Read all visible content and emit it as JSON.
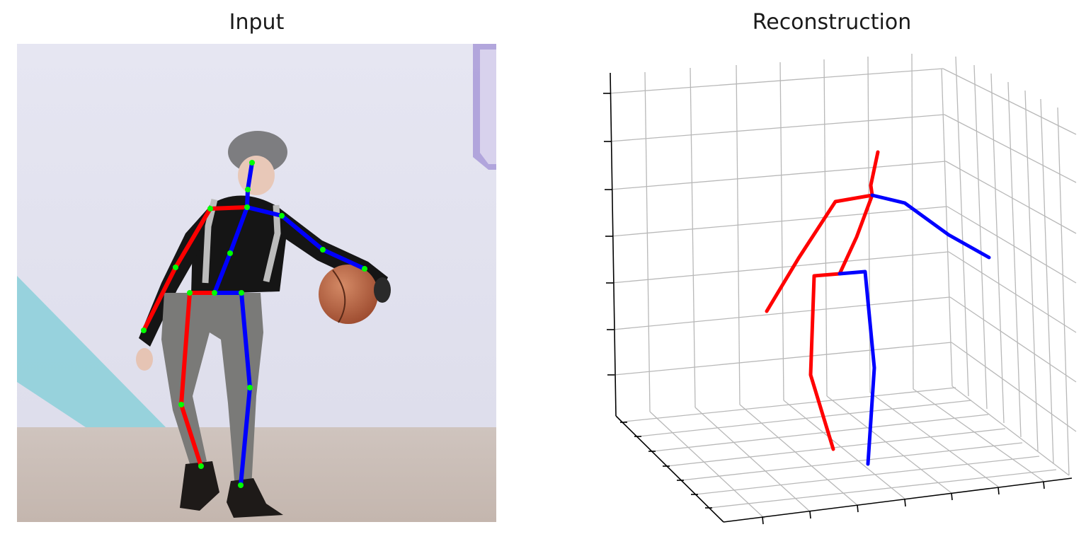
{
  "panels": {
    "input": {
      "title": "Input"
    },
    "reconstruction": {
      "title": "Reconstruction"
    }
  },
  "colors": {
    "left_limbs": "#ff0000",
    "right_limbs": "#0000ff",
    "joints": "#00ff00",
    "grid": "#b8b8b8",
    "axis": "#000000"
  }
}
